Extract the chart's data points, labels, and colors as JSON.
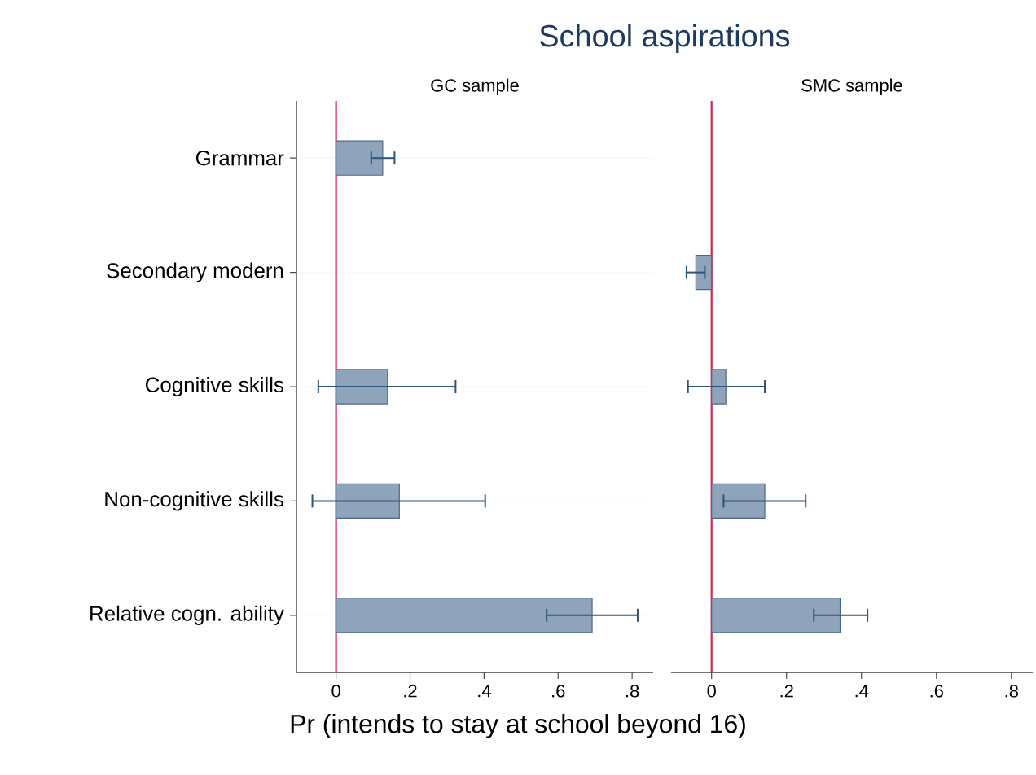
{
  "chart_data": [
    {
      "type": "bar",
      "orientation": "horizontal",
      "title": "School aspirations",
      "subtitle": "GC sample",
      "xlabel": "Pr (intends to stay at school beyond 16)",
      "categories": [
        "Grammar",
        "Secondary modern",
        "Cognitive skills",
        "Non-cognitive skills",
        "Relative cogn. ability"
      ],
      "values": [
        0.126,
        null,
        0.139,
        0.171,
        0.692
      ],
      "errors": [
        [
          0.095,
          0.158
        ],
        null,
        [
          -0.048,
          0.323
        ],
        [
          -0.064,
          0.403
        ],
        [
          0.569,
          0.815
        ]
      ],
      "color": "#8fa3bb",
      "xlim": [
        -0.107,
        0.857
      ],
      "xticks": [
        0,
        {
          "value": 0.2,
          "label": ".2"
        },
        {
          "value": 0.4,
          "label": ".4"
        },
        {
          "value": 0.6,
          "label": ".6"
        },
        {
          "value": 0.8,
          "label": ".8"
        }
      ],
      "ref_lines": [
        {
          "axis": "x",
          "value": 0,
          "color": "#d6284f"
        }
      ],
      "grid": "y"
    },
    {
      "type": "bar",
      "orientation": "horizontal",
      "subtitle": "SMC sample",
      "categories": [
        null,
        null,
        null,
        null,
        null
      ],
      "values": [
        null,
        -0.042,
        0.038,
        0.142,
        0.343
      ],
      "errors": [
        null,
        [
          -0.067,
          -0.018
        ],
        [
          -0.063,
          0.142
        ],
        [
          0.032,
          0.251
        ],
        [
          0.273,
          0.416
        ]
      ],
      "color": "#8fa3bb",
      "xlim": [
        -0.108,
        0.857
      ],
      "xticks": [
        0,
        {
          "value": 0.2,
          "label": ".2"
        },
        {
          "value": 0.4,
          "label": ".4"
        },
        {
          "value": 0.6,
          "label": ".6"
        },
        {
          "value": 0.8,
          "label": ".8"
        }
      ],
      "ref_lines": [
        {
          "axis": "x",
          "value": 0,
          "color": "#d6284f"
        }
      ],
      "grid": "y",
      "tick_labels": "x"
    }
  ]
}
